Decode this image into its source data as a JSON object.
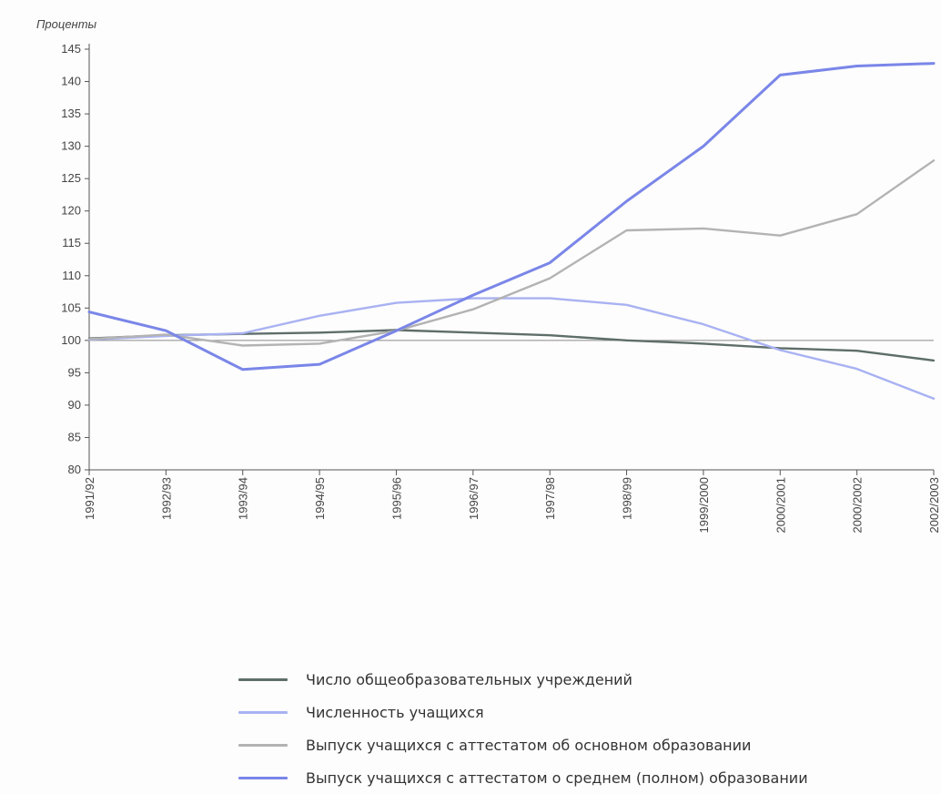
{
  "chart_data": {
    "type": "line",
    "ylabel": "Проценты",
    "xlabel": "",
    "ylim": [
      80,
      145
    ],
    "yticks": [
      80,
      85,
      90,
      95,
      100,
      105,
      110,
      115,
      120,
      125,
      130,
      135,
      140,
      145
    ],
    "categories": [
      "1991/92",
      "1992/93",
      "1993/94",
      "1994/95",
      "1995/96",
      "1996/97",
      "1997/98",
      "1998/99",
      "1999/2000",
      "2000/2001",
      "2000/2002",
      "2002/2003"
    ],
    "reference_line": 100,
    "grid": false,
    "legend_position": "bottom",
    "series": [
      {
        "name": "Число общеобразовательных учреждений",
        "color": "#5e6e6a",
        "values": [
          100.3,
          100.8,
          101.0,
          101.2,
          101.6,
          101.2,
          100.8,
          100.0,
          99.5,
          98.8,
          98.4,
          96.9
        ]
      },
      {
        "name": "Численность учащихся",
        "color": "#a9b2f2",
        "values": [
          100.1,
          100.7,
          101.1,
          103.8,
          105.8,
          106.5,
          106.5,
          105.5,
          102.5,
          98.5,
          95.6,
          91.0
        ]
      },
      {
        "name": "Выпуск учащихся с аттестатом об основном образовании",
        "color": "#b3b3b3",
        "values": [
          100.2,
          100.9,
          99.2,
          99.5,
          101.5,
          104.8,
          109.6,
          117.0,
          117.3,
          116.2,
          119.5,
          127.8
        ]
      },
      {
        "name": "Выпуск учащихся с аттестатом о среднем (полном) образовании",
        "color": "#7a86e8",
        "values": [
          104.4,
          101.5,
          95.5,
          96.3,
          101.5,
          107.0,
          112.0,
          121.5,
          130.0,
          141.0,
          142.4,
          142.8
        ]
      }
    ]
  }
}
